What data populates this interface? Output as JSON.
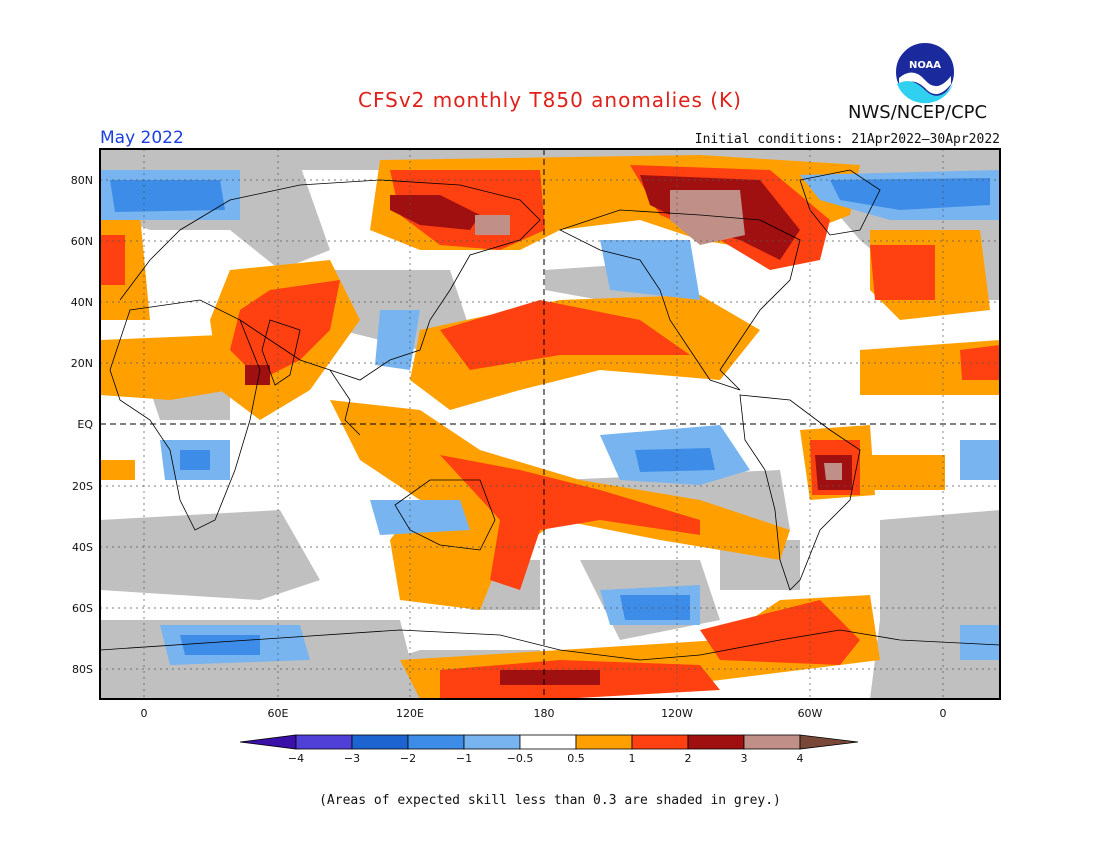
{
  "header": {
    "title": "CFSv2 monthly T850 anomalies (K)",
    "agency": "NWS/NCEP/CPC",
    "logo_text": "NOAA",
    "month": "May 2022",
    "initial_conditions": "Initial conditions: 21Apr2022–30Apr2022"
  },
  "map": {
    "lat_labels": [
      "80N",
      "60N",
      "40N",
      "20N",
      "EQ",
      "20S",
      "40S",
      "60S",
      "80S"
    ],
    "lon_labels": [
      "0",
      "60E",
      "120E",
      "180",
      "120W",
      "60W",
      "0"
    ]
  },
  "colorbar": {
    "tick_labels": [
      "−4",
      "−3",
      "−2",
      "−1",
      "−0.5",
      "0.5",
      "1",
      "2",
      "3",
      "4"
    ],
    "colors": [
      "#3a10a8",
      "#5040d8",
      "#1e64d0",
      "#3c8ce8",
      "#78b4f0",
      "#ffffff",
      "#ffa000",
      "#ff4010",
      "#a01010",
      "#c09088",
      "#7a4838"
    ]
  },
  "palette": {
    "grey": "#c0c0c0",
    "neg1": "#78b4f0",
    "neg2": "#3c8ce8",
    "pos1": "#ffa000",
    "pos2": "#ff4010",
    "pos3": "#a01010",
    "pos4": "#c09088"
  },
  "footer": {
    "note": "(Areas of expected skill less than 0.3 are shaded in grey.)"
  }
}
